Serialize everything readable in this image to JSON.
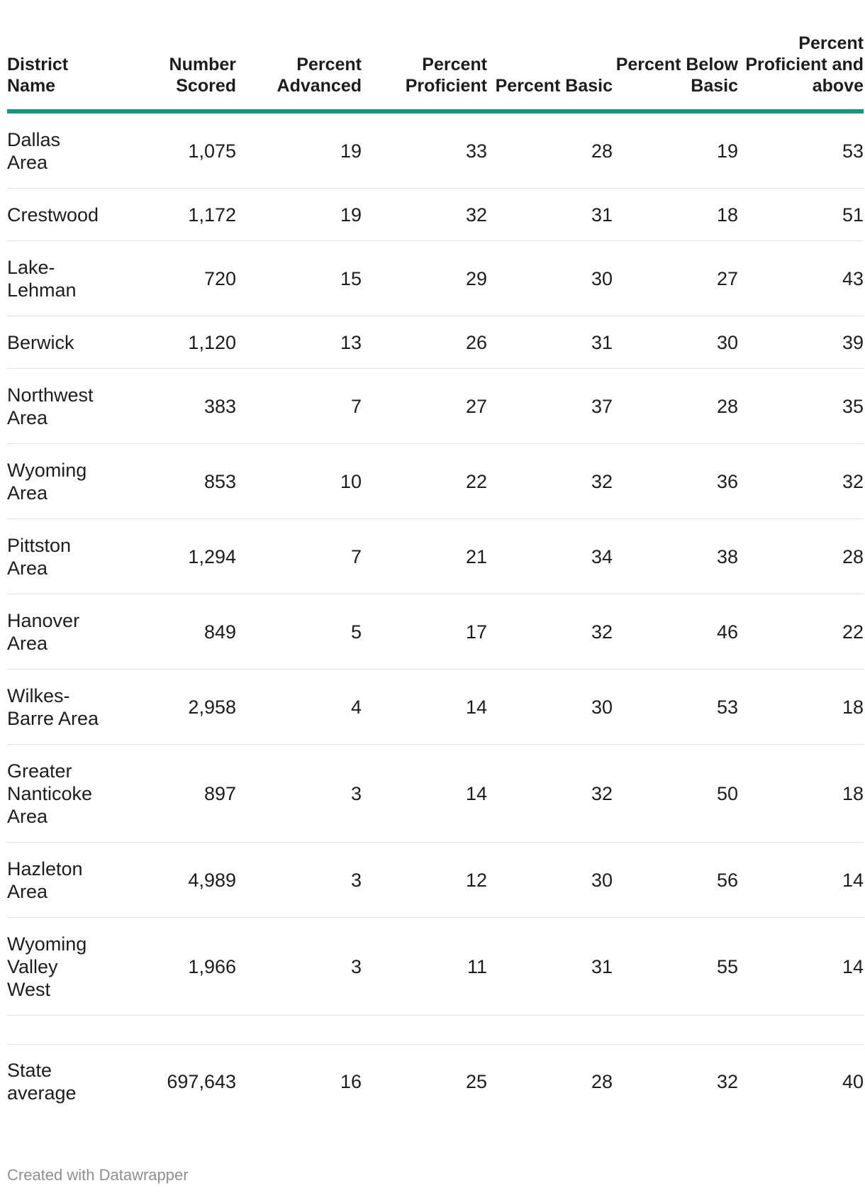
{
  "columns": {
    "district": "District Name",
    "scored": "Number Scored",
    "advanced": "Percent Advanced",
    "proficient": "Percent Proficient",
    "basic": "Percent Basic",
    "below_basic": "Percent Below Basic",
    "proficient_above": "Percent Proficient and above"
  },
  "rows": [
    {
      "district": "Dallas Area",
      "scored": "1,075",
      "advanced": "19",
      "proficient": "33",
      "basic": "28",
      "below_basic": "19",
      "proficient_above": "53"
    },
    {
      "district": "Crestwood",
      "scored": "1,172",
      "advanced": "19",
      "proficient": "32",
      "basic": "31",
      "below_basic": "18",
      "proficient_above": "51"
    },
    {
      "district": "Lake-Lehman",
      "scored": "720",
      "advanced": "15",
      "proficient": "29",
      "basic": "30",
      "below_basic": "27",
      "proficient_above": "43"
    },
    {
      "district": "Berwick",
      "scored": "1,120",
      "advanced": "13",
      "proficient": "26",
      "basic": "31",
      "below_basic": "30",
      "proficient_above": "39"
    },
    {
      "district": "Northwest Area",
      "scored": "383",
      "advanced": "7",
      "proficient": "27",
      "basic": "37",
      "below_basic": "28",
      "proficient_above": "35"
    },
    {
      "district": "Wyoming Area",
      "scored": "853",
      "advanced": "10",
      "proficient": "22",
      "basic": "32",
      "below_basic": "36",
      "proficient_above": "32"
    },
    {
      "district": "Pittston Area",
      "scored": "1,294",
      "advanced": "7",
      "proficient": "21",
      "basic": "34",
      "below_basic": "38",
      "proficient_above": "28"
    },
    {
      "district": "Hanover Area",
      "scored": "849",
      "advanced": "5",
      "proficient": "17",
      "basic": "32",
      "below_basic": "46",
      "proficient_above": "22"
    },
    {
      "district": "Wilkes-Barre Area",
      "scored": "2,958",
      "advanced": "4",
      "proficient": "14",
      "basic": "30",
      "below_basic": "53",
      "proficient_above": "18"
    },
    {
      "district": "Greater Nanticoke Area",
      "scored": "897",
      "advanced": "3",
      "proficient": "14",
      "basic": "32",
      "below_basic": "50",
      "proficient_above": "18"
    },
    {
      "district": "Hazleton Area",
      "scored": "4,989",
      "advanced": "3",
      "proficient": "12",
      "basic": "30",
      "below_basic": "56",
      "proficient_above": "14"
    },
    {
      "district": "Wyoming Valley West",
      "scored": "1,966",
      "advanced": "3",
      "proficient": "11",
      "basic": "31",
      "below_basic": "55",
      "proficient_above": "14"
    }
  ],
  "state_average": {
    "district": "State average",
    "scored": "697,643",
    "advanced": "16",
    "proficient": "25",
    "basic": "28",
    "below_basic": "32",
    "proficient_above": "40"
  },
  "footer": "Created with Datawrapper",
  "colors": {
    "header_rule": "#13977d",
    "row_divider": "#e2e2e2",
    "footer_text": "#8f8f8f"
  },
  "chart_data": {
    "type": "table",
    "columns": [
      "District Name",
      "Number Scored",
      "Percent Advanced",
      "Percent Proficient",
      "Percent Basic",
      "Percent Below Basic",
      "Percent Proficient and above"
    ],
    "rows": [
      [
        "Dallas Area",
        1075,
        19,
        33,
        28,
        19,
        53
      ],
      [
        "Crestwood",
        1172,
        19,
        32,
        31,
        18,
        51
      ],
      [
        "Lake-Lehman",
        720,
        15,
        29,
        30,
        27,
        43
      ],
      [
        "Berwick",
        1120,
        13,
        26,
        31,
        30,
        39
      ],
      [
        "Northwest Area",
        383,
        7,
        27,
        37,
        28,
        35
      ],
      [
        "Wyoming Area",
        853,
        10,
        22,
        32,
        36,
        32
      ],
      [
        "Pittston Area",
        1294,
        7,
        21,
        34,
        38,
        28
      ],
      [
        "Hanover Area",
        849,
        5,
        17,
        32,
        46,
        22
      ],
      [
        "Wilkes-Barre Area",
        2958,
        4,
        14,
        30,
        53,
        18
      ],
      [
        "Greater Nanticoke Area",
        897,
        3,
        14,
        32,
        50,
        18
      ],
      [
        "Hazleton Area",
        4989,
        3,
        12,
        30,
        56,
        14
      ],
      [
        "Wyoming Valley West",
        1966,
        3,
        11,
        31,
        55,
        14
      ],
      [
        "State average",
        697643,
        16,
        25,
        28,
        32,
        40
      ]
    ]
  }
}
